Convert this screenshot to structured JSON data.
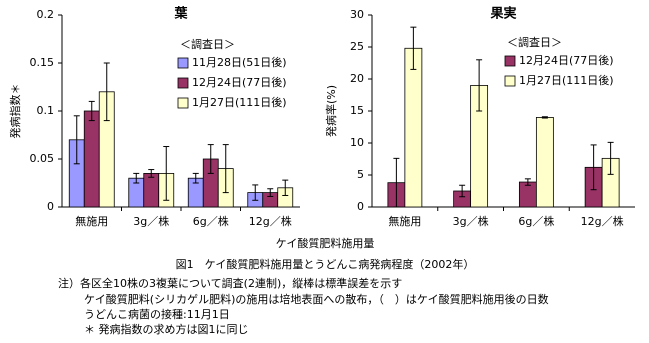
{
  "chart_data": [
    {
      "type": "bar",
      "title": "葉",
      "ylabel": "発病指数＊",
      "legend_title": "＜調査日＞",
      "categories": [
        "無施用",
        "3g／株",
        "6g／株",
        "12g／株"
      ],
      "ylim": [
        0,
        0.2
      ],
      "yticks": [
        0,
        0.05,
        0.1,
        0.15,
        0.2
      ],
      "series": [
        {
          "name": "11月28日(51日後)",
          "color": "#9999ff",
          "values": [
            0.07,
            0.03,
            0.03,
            0.015
          ],
          "errors": [
            0.025,
            0.005,
            0.005,
            0.008
          ]
        },
        {
          "name": "12月24日(77日後)",
          "color": "#993366",
          "values": [
            0.1,
            0.035,
            0.05,
            0.015
          ],
          "errors": [
            0.01,
            0.004,
            0.015,
            0.004
          ]
        },
        {
          "name": "1月27日(111日後)",
          "color": "#ffffcc",
          "values": [
            0.12,
            0.035,
            0.04,
            0.02
          ],
          "errors": [
            0.03,
            0.028,
            0.025,
            0.008
          ]
        }
      ]
    },
    {
      "type": "bar",
      "title": "果実",
      "ylabel": "発病率(%)",
      "legend_title": "＜調査日＞",
      "categories": [
        "無施用",
        "3g／株",
        "6g／株",
        "12g／株"
      ],
      "ylim": [
        0,
        30
      ],
      "yticks": [
        0,
        5,
        10,
        15,
        20,
        25,
        30
      ],
      "series": [
        {
          "name": "12月24日(77日後)",
          "color": "#993366",
          "values": [
            3.8,
            2.5,
            3.9,
            6.2
          ],
          "errors": [
            3.8,
            0.9,
            0.5,
            3.5
          ]
        },
        {
          "name": "1月27日(111日後)",
          "color": "#ffffcc",
          "values": [
            24.8,
            19,
            14,
            7.6
          ],
          "errors": [
            3.3,
            4,
            0.1,
            2.5
          ]
        }
      ]
    }
  ],
  "figure": {
    "xlabel": "ケイ酸質肥料施用量",
    "caption": "図1　ケイ酸質肥料施用量とうどんこ病発病程度（2002年）",
    "notes": [
      "注）各区全10株の3複葉について調査(2連制)，縦棒は標準誤差を示す",
      "ケイ酸質肥料(シリカゲル肥料)の施用は培地表面への散布，（　）はケイ酸質肥料施用後の日数",
      "うどんこ病菌の接種:11月1日",
      "＊ 発病指数の求め方は図1に同じ"
    ]
  }
}
